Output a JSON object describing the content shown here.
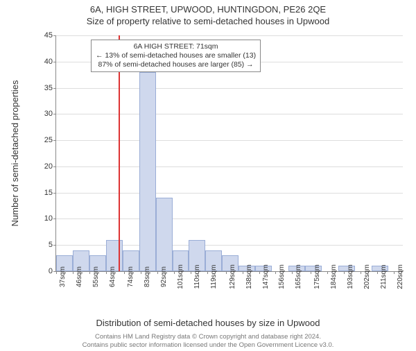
{
  "chart": {
    "type": "histogram",
    "title_main": "6A, HIGH STREET, UPWOOD, HUNTINGDON, PE26 2QE",
    "title_sub": "Size of property relative to semi-detached houses in Upwood",
    "yaxis_label": "Number of semi-detached properties",
    "xaxis_label": "Distribution of semi-detached houses by size in Upwood",
    "ylim": [
      0,
      45
    ],
    "ytick_step": 5,
    "x_start": 37,
    "x_end": 225,
    "x_bin_width": 9,
    "xtick_values": [
      37,
      46,
      55,
      64,
      74,
      83,
      92,
      101,
      110,
      119,
      129,
      138,
      147,
      156,
      165,
      175,
      184,
      193,
      202,
      211,
      220
    ],
    "xtick_suffix": "sqm",
    "bar_color": "#cfd8ed",
    "bar_border_color": "#9aadd6",
    "marker_color": "#d33",
    "grid_color": "#dddddd",
    "axis_color": "#888888",
    "background_color": "#ffffff",
    "marker_x": 71,
    "bars": [
      {
        "x0": 37,
        "v": 3
      },
      {
        "x0": 46,
        "v": 4
      },
      {
        "x0": 55,
        "v": 3
      },
      {
        "x0": 64,
        "v": 6
      },
      {
        "x0": 73,
        "v": 4
      },
      {
        "x0": 82,
        "v": 38
      },
      {
        "x0": 91,
        "v": 14
      },
      {
        "x0": 100,
        "v": 4
      },
      {
        "x0": 109,
        "v": 6
      },
      {
        "x0": 118,
        "v": 4
      },
      {
        "x0": 127,
        "v": 3
      },
      {
        "x0": 136,
        "v": 1
      },
      {
        "x0": 145,
        "v": 1
      },
      {
        "x0": 154,
        "v": 0
      },
      {
        "x0": 163,
        "v": 1
      },
      {
        "x0": 172,
        "v": 1
      },
      {
        "x0": 181,
        "v": 0
      },
      {
        "x0": 190,
        "v": 1
      },
      {
        "x0": 199,
        "v": 0
      },
      {
        "x0": 208,
        "v": 1
      },
      {
        "x0": 217,
        "v": 0
      }
    ],
    "annotation": {
      "line1": "6A HIGH STREET: 71sqm",
      "line2": "← 13% of semi-detached houses are smaller (13)",
      "line3": "87% of semi-detached houses are larger (85) →"
    },
    "footer_line1": "Contains HM Land Registry data © Crown copyright and database right 2024.",
    "footer_line2": "Contains public sector information licensed under the Open Government Licence v3.0."
  }
}
